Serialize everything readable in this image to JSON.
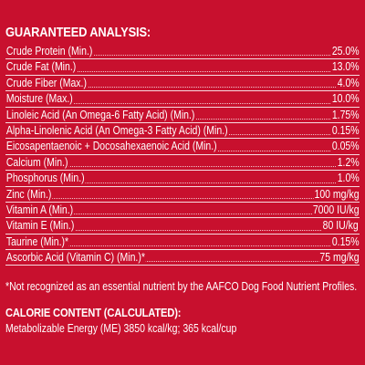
{
  "analysis": {
    "heading": "GUARANTEED ANALYSIS:",
    "rows": [
      {
        "label": "Crude Protein (Min.)",
        "value": "25.0%"
      },
      {
        "label": "Crude Fat (Min.)",
        "value": "13.0%"
      },
      {
        "label": "Crude Fiber (Max.)",
        "value": "4.0%"
      },
      {
        "label": "Moisture (Max.)",
        "value": "10.0%"
      },
      {
        "label": "Linoleic Acid (An Omega-6 Fatty Acid) (Min.)",
        "value": "1.75%"
      },
      {
        "label": "Alpha-Linolenic Acid (An Omega-3 Fatty Acid) (Min.)",
        "value": "0.15%"
      },
      {
        "label": "Eicosapentaenoic + Docosahexaenoic Acid (Min.)",
        "value": "0.05%"
      },
      {
        "label": "Calcium (Min.)",
        "value": "1.2%"
      },
      {
        "label": "Phosphorus (Min.)",
        "value": "1.0%"
      },
      {
        "label": "Zinc (Min.)",
        "value": "100 mg/kg"
      },
      {
        "label": "Vitamin A (Min.)",
        "value": "7000 IU/kg"
      },
      {
        "label": "Vitamin E (Min.)",
        "value": "80 IU/kg"
      },
      {
        "label": "Taurine (Min.)*",
        "value": "0.15%"
      },
      {
        "label": "Ascorbic Acid (Vitamin C) (Min.)*",
        "value": "75 mg/kg"
      }
    ],
    "footnote": "*Not recognized as an essential nutrient by the AAFCO Dog Food Nutrient Profiles."
  },
  "calorie": {
    "heading": "CALORIE CONTENT (CALCULATED):",
    "energy": "Metabolizable Energy (ME) 3850 kcal/kg;  365 kcal/cup"
  },
  "colors": {
    "background": "#c8102e",
    "text": "#ffffff"
  }
}
